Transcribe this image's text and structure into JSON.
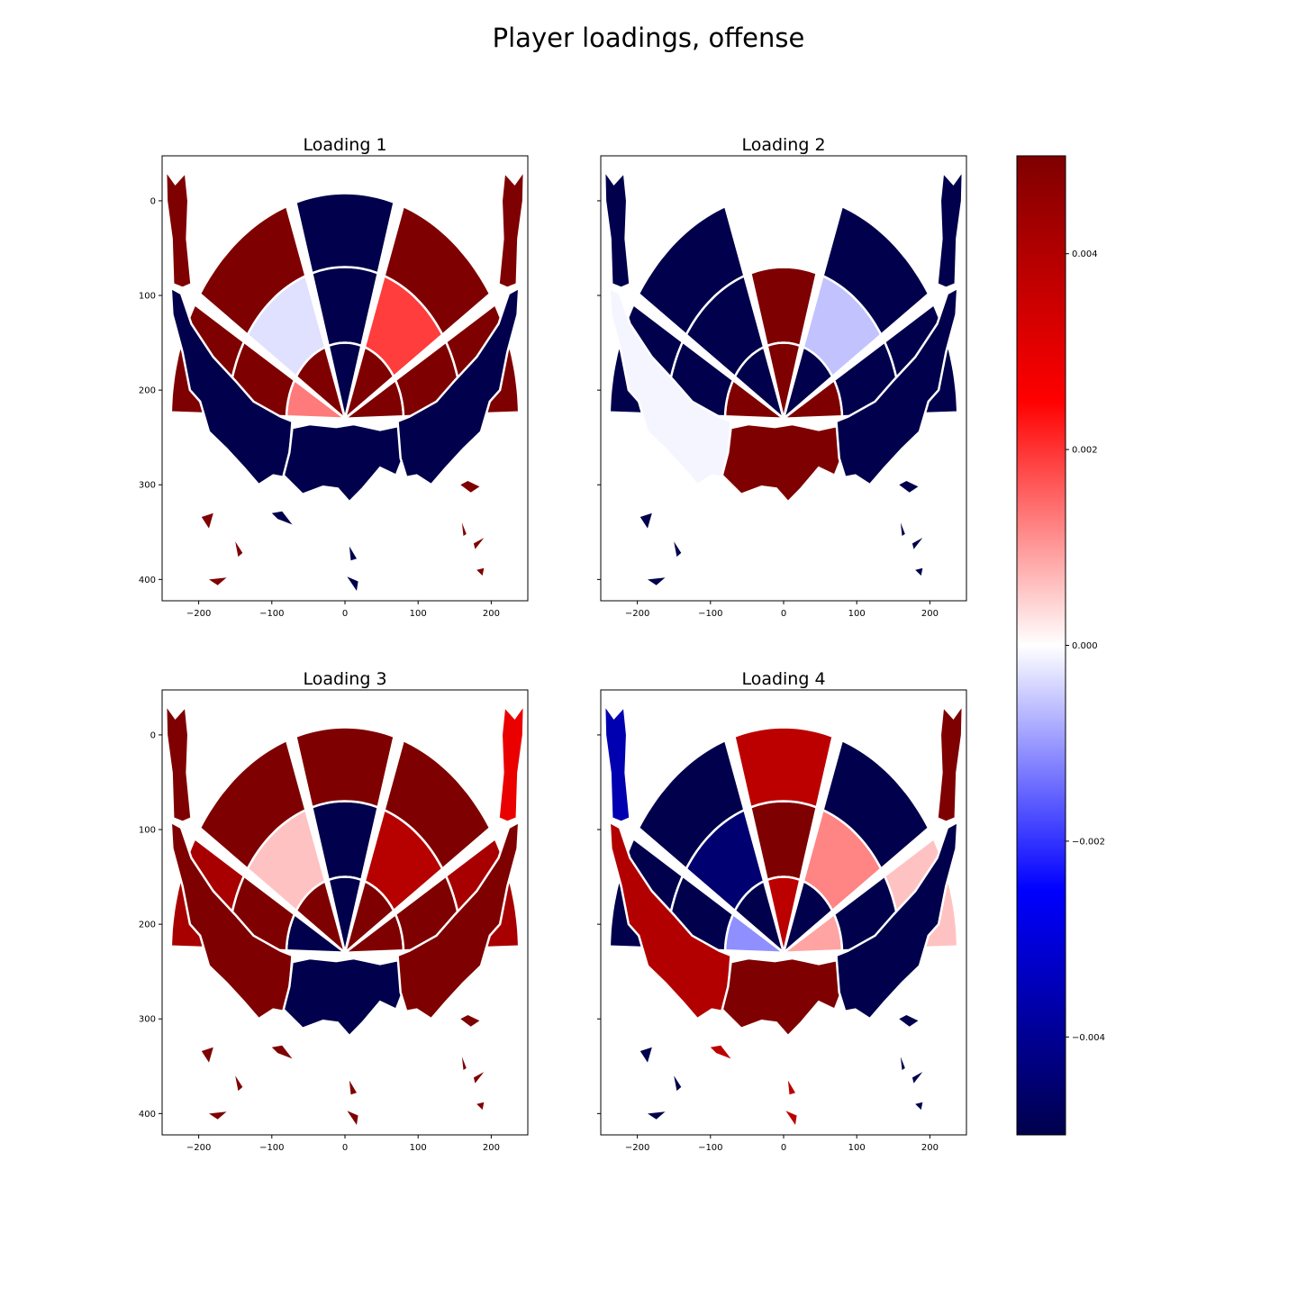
{
  "chart_data": {
    "type": "heatmap",
    "title": "Player loadings, offense",
    "xlim": [
      -250,
      250
    ],
    "ylim": [
      422.5,
      -47.5
    ],
    "x_ticks": [
      -200,
      -100,
      0,
      100,
      200
    ],
    "x_tick_labels": [
      "−200",
      "−100",
      "0",
      "100",
      "200"
    ],
    "y_ticks": [
      0,
      100,
      200,
      300,
      400
    ],
    "y_tick_labels": [
      "0",
      "100",
      "200",
      "300",
      "400"
    ],
    "zone_order": [
      "LC3",
      "LW",
      "LW1",
      "RW1",
      "RW",
      "RC3",
      "LMR",
      "LEL",
      "TOK",
      "REL",
      "RMR",
      "LBL",
      "PNT",
      "RBL",
      "LWN",
      "PNU",
      "RWN",
      "LCO",
      "CCO",
      "RCO"
    ],
    "colorbar": {
      "colormap": "seismic",
      "range": [
        -0.005,
        0.005
      ],
      "ticks": [
        0.004,
        0.002,
        0.0,
        -0.002,
        -0.004
      ],
      "tick_labels": [
        "0.004",
        "0.002",
        "0.000",
        "−0.002",
        "−0.004"
      ]
    },
    "panels": [
      {
        "title": "Loading 1",
        "values": [
          0.005,
          0.005,
          0.0013,
          0.005,
          0.005,
          0.005,
          0.005,
          -0.0003,
          -0.005,
          0.0019,
          0.005,
          0.005,
          -0.005,
          0.005,
          -0.005,
          -0.005,
          -0.005,
          0.005,
          -0.005,
          0.005
        ]
      },
      {
        "title": "Loading 2",
        "values": [
          -0.005,
          -0.005,
          0.005,
          0.005,
          -0.005,
          -0.005,
          -0.005,
          -0.005,
          0.005,
          -0.0006,
          -0.005,
          -0.005,
          0.005,
          -0.005,
          -0.0001,
          0.005,
          -0.005,
          -0.005,
          0.0,
          -0.005
        ]
      },
      {
        "title": "Loading 3",
        "values": [
          0.005,
          0.0042,
          -0.005,
          0.005,
          0.0042,
          0.0029,
          0.005,
          0.0006,
          -0.005,
          0.0039,
          0.005,
          0.005,
          -0.005,
          0.005,
          0.005,
          -0.005,
          0.005,
          0.005,
          0.005,
          0.005
        ]
      },
      {
        "title": "Loading 4",
        "values": [
          -0.0036,
          -0.005,
          -0.0011,
          0.0009,
          0.0006,
          0.005,
          -0.005,
          -0.0045,
          0.005,
          0.0012,
          -0.005,
          -0.005,
          0.0038,
          -0.005,
          0.004,
          0.005,
          -0.005,
          -0.005,
          0.0038,
          -0.005
        ]
      }
    ]
  }
}
